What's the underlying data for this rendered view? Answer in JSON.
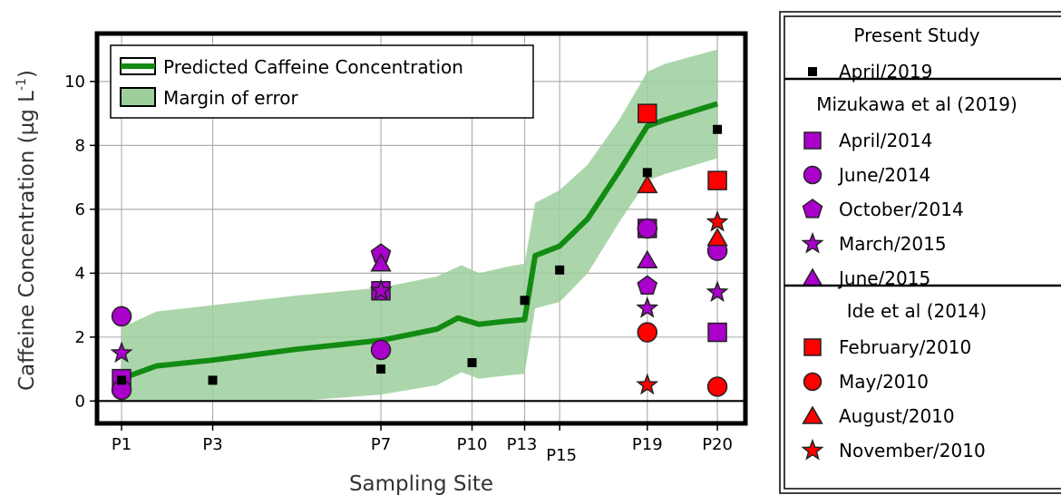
{
  "chart_data": {
    "type": "scatter",
    "xlabel": "Sampling Site",
    "ylabel": "Caffeine Concentration (µg L",
    "ylabel_sup": "-1",
    "ylabel_close": ")",
    "ylim": [
      -0.7,
      11.5
    ],
    "xlim": [
      -0.7,
      17.8
    ],
    "yticks": [
      0,
      2,
      4,
      6,
      8,
      10
    ],
    "grid": true,
    "sites": [
      {
        "label": "P1",
        "x": 0
      },
      {
        "label": "P3",
        "x": 2.6
      },
      {
        "label": "P7",
        "x": 7.4
      },
      {
        "label": "P10",
        "x": 10.0
      },
      {
        "label": "P13",
        "x": 11.5
      },
      {
        "label": "P15",
        "x": 12.5
      },
      {
        "label": "P19",
        "x": 15.0
      },
      {
        "label": "P20",
        "x": 17.0
      }
    ],
    "prediction": {
      "name": "Predicted Caffeine Concentration",
      "color": "#138b13",
      "points": [
        {
          "x": 0,
          "y": 0.7
        },
        {
          "x": 1.0,
          "y": 1.1
        },
        {
          "x": 2.6,
          "y": 1.28
        },
        {
          "x": 5.0,
          "y": 1.62
        },
        {
          "x": 7.4,
          "y": 1.9
        },
        {
          "x": 9.0,
          "y": 2.25
        },
        {
          "x": 9.6,
          "y": 2.6
        },
        {
          "x": 10.2,
          "y": 2.4
        },
        {
          "x": 11.0,
          "y": 2.5
        },
        {
          "x": 11.5,
          "y": 2.55
        },
        {
          "x": 11.8,
          "y": 4.55
        },
        {
          "x": 12.5,
          "y": 4.85
        },
        {
          "x": 13.3,
          "y": 5.7
        },
        {
          "x": 14.2,
          "y": 7.2
        },
        {
          "x": 15.0,
          "y": 8.6
        },
        {
          "x": 15.5,
          "y": 8.8
        },
        {
          "x": 17.0,
          "y": 9.3
        }
      ]
    },
    "margin": {
      "name": "Margin of error",
      "color": "#9ccf9c",
      "upper": [
        {
          "x": 0,
          "y": 2.3
        },
        {
          "x": 1.0,
          "y": 2.8
        },
        {
          "x": 2.6,
          "y": 3.0
        },
        {
          "x": 5.0,
          "y": 3.3
        },
        {
          "x": 7.4,
          "y": 3.55
        },
        {
          "x": 9.0,
          "y": 3.9
        },
        {
          "x": 9.7,
          "y": 4.25
        },
        {
          "x": 10.2,
          "y": 4.0
        },
        {
          "x": 11.0,
          "y": 4.2
        },
        {
          "x": 11.5,
          "y": 4.3
        },
        {
          "x": 11.8,
          "y": 6.2
        },
        {
          "x": 12.5,
          "y": 6.6
        },
        {
          "x": 13.3,
          "y": 7.4
        },
        {
          "x": 14.2,
          "y": 8.8
        },
        {
          "x": 15.0,
          "y": 10.3
        },
        {
          "x": 15.5,
          "y": 10.55
        },
        {
          "x": 17.0,
          "y": 11.0
        }
      ],
      "lower": [
        {
          "x": 0,
          "y": 0.0
        },
        {
          "x": 1.0,
          "y": 0.0
        },
        {
          "x": 2.6,
          "y": 0.0
        },
        {
          "x": 5.0,
          "y": 0.0
        },
        {
          "x": 7.4,
          "y": 0.2
        },
        {
          "x": 9.0,
          "y": 0.5
        },
        {
          "x": 9.7,
          "y": 0.9
        },
        {
          "x": 10.2,
          "y": 0.7
        },
        {
          "x": 11.0,
          "y": 0.8
        },
        {
          "x": 11.5,
          "y": 0.85
        },
        {
          "x": 11.8,
          "y": 2.9
        },
        {
          "x": 12.5,
          "y": 3.1
        },
        {
          "x": 13.3,
          "y": 4.0
        },
        {
          "x": 14.2,
          "y": 5.6
        },
        {
          "x": 15.0,
          "y": 6.9
        },
        {
          "x": 15.5,
          "y": 7.1
        },
        {
          "x": 17.0,
          "y": 7.6
        }
      ]
    },
    "series": [
      {
        "name": "April/2019",
        "group": "Present Study",
        "shape": "square",
        "size": "small",
        "color": "#000000",
        "points": [
          {
            "x": 0,
            "y": 0.65
          },
          {
            "x": 2.6,
            "y": 0.65
          },
          {
            "x": 7.4,
            "y": 1.0
          },
          {
            "x": 10.0,
            "y": 1.2
          },
          {
            "x": 11.5,
            "y": 3.15
          },
          {
            "x": 12.5,
            "y": 4.1
          },
          {
            "x": 15.0,
            "y": 7.15
          },
          {
            "x": 17.0,
            "y": 8.5
          }
        ]
      },
      {
        "name": "April/2014",
        "group": "Mizukawa et al (2019)",
        "shape": "square",
        "size": "large",
        "color": "#aa00cc",
        "points": [
          {
            "x": 0,
            "y": 0.7
          },
          {
            "x": 7.4,
            "y": 3.45
          },
          {
            "x": 15.0,
            "y": 5.4
          },
          {
            "x": 17.0,
            "y": 2.15
          }
        ]
      },
      {
        "name": "June/2014",
        "group": "Mizukawa et al (2019)",
        "shape": "circle",
        "size": "large",
        "color": "#aa00cc",
        "points": [
          {
            "x": 0,
            "y": 2.65
          },
          {
            "x": 0,
            "y": 0.35
          },
          {
            "x": 7.4,
            "y": 1.6
          },
          {
            "x": 15.0,
            "y": 5.4
          },
          {
            "x": 17.0,
            "y": 4.7
          }
        ]
      },
      {
        "name": "October/2014",
        "group": "Mizukawa et al (2019)",
        "shape": "pentagon",
        "size": "large",
        "color": "#aa00cc",
        "points": [
          {
            "x": 7.4,
            "y": 4.6
          },
          {
            "x": 15.0,
            "y": 3.6
          }
        ]
      },
      {
        "name": "March/2015",
        "group": "Mizukawa et al (2019)",
        "shape": "star",
        "size": "large",
        "color": "#aa00cc",
        "points": [
          {
            "x": 0,
            "y": 1.5
          },
          {
            "x": 7.4,
            "y": 3.45
          },
          {
            "x": 15.0,
            "y": 2.9
          },
          {
            "x": 17.0,
            "y": 3.4
          }
        ]
      },
      {
        "name": "June/2015",
        "group": "Mizukawa et al (2019)",
        "shape": "triangle",
        "size": "large",
        "color": "#aa00cc",
        "points": [
          {
            "x": 7.4,
            "y": 4.3
          },
          {
            "x": 15.0,
            "y": 4.4
          }
        ]
      },
      {
        "name": "February/2010",
        "group": "Ide et al (2014)",
        "shape": "square",
        "size": "large",
        "color": "#ff0000",
        "points": [
          {
            "x": 15.0,
            "y": 9.0
          },
          {
            "x": 17.0,
            "y": 6.9
          }
        ]
      },
      {
        "name": "May/2010",
        "group": "Ide et al (2014)",
        "shape": "circle",
        "size": "large",
        "color": "#ff0000",
        "points": [
          {
            "x": 15.0,
            "y": 2.15
          },
          {
            "x": 17.0,
            "y": 0.45
          }
        ]
      },
      {
        "name": "August/2010",
        "group": "Ide et al (2014)",
        "shape": "triangle",
        "size": "large",
        "color": "#ff0000",
        "points": [
          {
            "x": 15.0,
            "y": 6.75
          },
          {
            "x": 17.0,
            "y": 5.1
          }
        ]
      },
      {
        "name": "November/2010",
        "group": "Ide et al (2014)",
        "shape": "star",
        "size": "large",
        "color": "#ff0000",
        "points": [
          {
            "x": 15.0,
            "y": 0.5
          },
          {
            "x": 17.0,
            "y": 5.6
          }
        ]
      }
    ],
    "inner_legend": {
      "position": "top-left",
      "entries": [
        "Predicted Caffeine Concentration",
        "Margin of error"
      ]
    },
    "side_legend": {
      "position": "right",
      "groups": [
        {
          "title": "Present Study",
          "items": [
            "April/2019"
          ]
        },
        {
          "title": "Mizukawa et al (2019)",
          "items": [
            "April/2014",
            "June/2014",
            "October/2014",
            "March/2015",
            "June/2015"
          ]
        },
        {
          "title": "Ide et al (2014)",
          "items": [
            "February/2010",
            "May/2010",
            "August/2010",
            "November/2010"
          ]
        }
      ]
    }
  }
}
